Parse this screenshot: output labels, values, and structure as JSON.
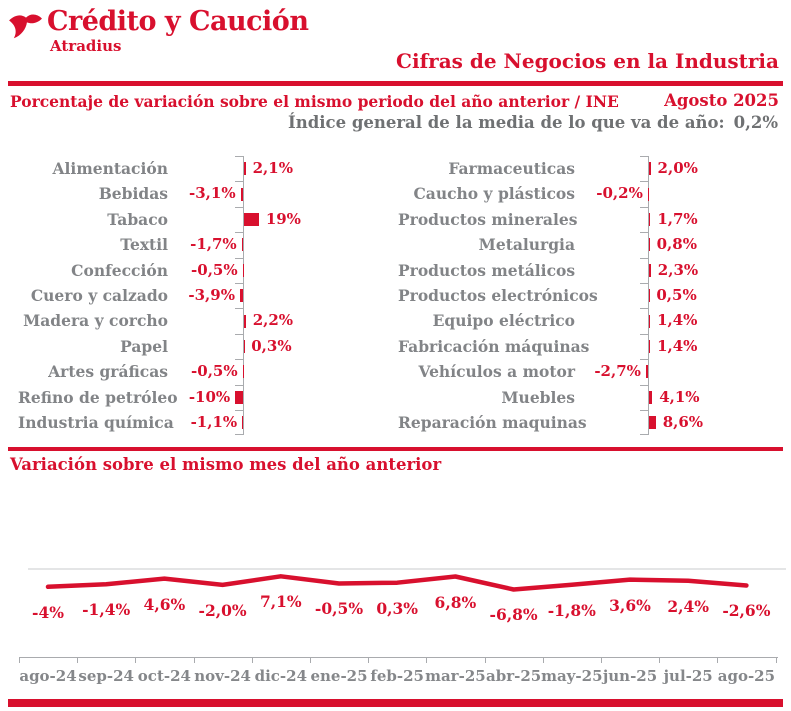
{
  "brand": {
    "name": "Crédito y Caución",
    "subsidiary": "Atradius",
    "logo_icon": "tri-blade-bird-icon"
  },
  "page_title": "Cifras de Negocios en la Industria",
  "subheader": {
    "date": "Agosto 2025"
  },
  "index_note": {
    "label": "Índice general de la media de lo que va de año:",
    "value": "0,2%"
  },
  "colors": {
    "brand_red": "#D8102E",
    "category_gray": "#828487",
    "note_gray": "#6F7173",
    "axis_gray": "#A9ABAE"
  },
  "chart_data": [
    {
      "type": "bar",
      "orientation": "horizontal",
      "group": "left",
      "title": "Porcentaje de variación sobre el mismo periodo del año anterior / INE",
      "unit": "%",
      "categories": [
        "Alimentación",
        "Bebidas",
        "Tabaco",
        "Textil",
        "Confección",
        "Cuero y calzado",
        "Madera y corcho",
        "Papel",
        "Artes gráficas",
        "Refino de petróleo",
        "Industria química"
      ],
      "values": [
        2.1,
        -3.1,
        19,
        -1.7,
        -0.5,
        -3.9,
        2.2,
        0.3,
        -0.5,
        -10,
        -1.1
      ],
      "value_labels": [
        "2,1%",
        "-3,1%",
        "19%",
        "-1,7%",
        "-0,5%",
        "-3,9%",
        "2,2%",
        "0,3%",
        "-0,5%",
        "-10%",
        "-1,1%"
      ]
    },
    {
      "type": "bar",
      "orientation": "horizontal",
      "group": "right",
      "title": "Porcentaje de variación sobre el mismo periodo del año anterior / INE",
      "unit": "%",
      "categories": [
        "Farmaceuticas",
        "Caucho y plásticos",
        "Productos minerales",
        "Metalurgia",
        "Productos metálicos",
        "Productos electrónicos",
        "Equipo eléctrico",
        "Fabricación máquinas",
        "Vehículos a motor",
        "Muebles",
        "Reparación maquinas"
      ],
      "values": [
        2.0,
        -0.2,
        1.7,
        0.8,
        2.3,
        0.5,
        1.4,
        1.4,
        -2.7,
        4.1,
        8.6
      ],
      "value_labels": [
        "2,0%",
        "-0,2%",
        "1,7%",
        "0,8%",
        "2,3%",
        "0,5%",
        "1,4%",
        "1,4%",
        "-2,7%",
        "4,1%",
        "8,6%"
      ]
    },
    {
      "type": "line",
      "title": "Variación sobre el mismo mes del año anterior",
      "unit": "%",
      "x": [
        "ago-24",
        "sep-24",
        "oct-24",
        "nov-24",
        "dic-24",
        "ene-25",
        "feb-25",
        "mar-25",
        "abr-25",
        "may-25",
        "jun-25",
        "jul-25",
        "ago-25"
      ],
      "values": [
        -4,
        -1.4,
        4.6,
        -2.0,
        7.1,
        -0.5,
        0.3,
        6.8,
        -6.8,
        -1.8,
        3.6,
        2.4,
        -2.6
      ],
      "value_labels": [
        "-4%",
        "-1,4%",
        "4,6%",
        "-2,0%",
        "7,1%",
        "-0,5%",
        "0,3%",
        "6,8%",
        "-6,8%",
        "-1,8%",
        "3,6%",
        "2,4%",
        "-2,6%"
      ],
      "legend": false,
      "grid": "top-border-only"
    }
  ]
}
